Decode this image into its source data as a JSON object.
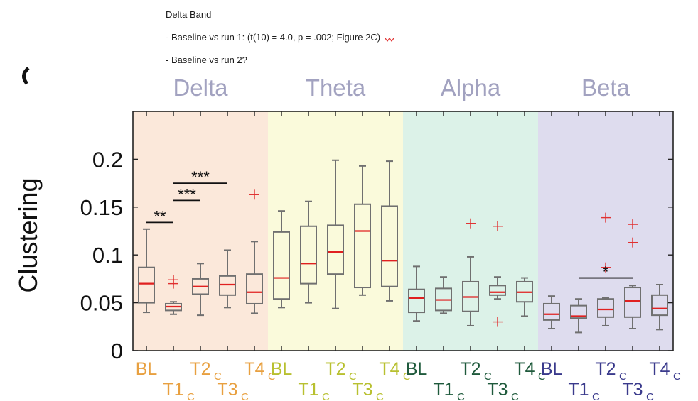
{
  "notes": {
    "line1": "Delta Band",
    "line2": "- Baseline vs run 1: (t(10) = 4.0, p = .002; Figure 2C)",
    "line3": "- Baseline vs run 2?"
  },
  "chart_data": {
    "type": "box",
    "ylabel": "Clustering",
    "ylim": [
      0,
      0.25
    ],
    "yticks": [
      "0",
      "0.05",
      "0.1",
      "0.15",
      "0.2"
    ],
    "colors": {
      "median": "#e02020",
      "box": "#707070",
      "outlier": "#e03030"
    },
    "bands": [
      {
        "name": "Delta",
        "bg": "#fbe8da",
        "label_color": "#a2a2c0",
        "tick_color": "#e8a040",
        "groups": [
          {
            "label": "BL",
            "sub": "",
            "q1": 0.05,
            "median": 0.07,
            "q3": 0.087,
            "whisker_low": 0.04,
            "whisker_high": 0.127,
            "outliers": []
          },
          {
            "label": "T1",
            "sub": "C",
            "q1": 0.042,
            "median": 0.046,
            "q3": 0.049,
            "whisker_low": 0.038,
            "whisker_high": 0.051,
            "outliers": [
              0.07,
              0.074
            ]
          },
          {
            "label": "T2",
            "sub": "C",
            "q1": 0.059,
            "median": 0.067,
            "q3": 0.075,
            "whisker_low": 0.037,
            "whisker_high": 0.091,
            "outliers": []
          },
          {
            "label": "T3",
            "sub": "C",
            "q1": 0.058,
            "median": 0.069,
            "q3": 0.078,
            "whisker_low": 0.045,
            "whisker_high": 0.105,
            "outliers": []
          },
          {
            "label": "T4",
            "sub": "C",
            "q1": 0.049,
            "median": 0.061,
            "q3": 0.08,
            "whisker_low": 0.039,
            "whisker_high": 0.114,
            "outliers": [
              0.163
            ]
          }
        ]
      },
      {
        "name": "Theta",
        "bg": "#fafadb",
        "label_color": "#a2a2c0",
        "tick_color": "#b8c030",
        "groups": [
          {
            "label": "BL",
            "sub": "",
            "q1": 0.054,
            "median": 0.076,
            "q3": 0.124,
            "whisker_low": 0.045,
            "whisker_high": 0.146,
            "outliers": []
          },
          {
            "label": "T1",
            "sub": "C",
            "q1": 0.07,
            "median": 0.091,
            "q3": 0.13,
            "whisker_low": 0.05,
            "whisker_high": 0.156,
            "outliers": []
          },
          {
            "label": "T2",
            "sub": "C",
            "q1": 0.08,
            "median": 0.103,
            "q3": 0.131,
            "whisker_low": 0.044,
            "whisker_high": 0.199,
            "outliers": []
          },
          {
            "label": "T3",
            "sub": "C",
            "q1": 0.066,
            "median": 0.125,
            "q3": 0.153,
            "whisker_low": 0.058,
            "whisker_high": 0.193,
            "outliers": []
          },
          {
            "label": "T4",
            "sub": "C",
            "q1": 0.067,
            "median": 0.094,
            "q3": 0.151,
            "whisker_low": 0.052,
            "whisker_high": 0.198,
            "outliers": []
          }
        ]
      },
      {
        "name": "Alpha",
        "bg": "#dcf2e8",
        "label_color": "#a2a2c0",
        "tick_color": "#1f5a3c",
        "groups": [
          {
            "label": "BL",
            "sub": "",
            "q1": 0.04,
            "median": 0.055,
            "q3": 0.064,
            "whisker_low": 0.031,
            "whisker_high": 0.088,
            "outliers": []
          },
          {
            "label": "T1",
            "sub": "C",
            "q1": 0.042,
            "median": 0.053,
            "q3": 0.065,
            "whisker_low": 0.039,
            "whisker_high": 0.077,
            "outliers": []
          },
          {
            "label": "T2",
            "sub": "C",
            "q1": 0.041,
            "median": 0.056,
            "q3": 0.072,
            "whisker_low": 0.026,
            "whisker_high": 0.098,
            "outliers": [
              0.133
            ]
          },
          {
            "label": "T3",
            "sub": "C",
            "q1": 0.058,
            "median": 0.061,
            "q3": 0.068,
            "whisker_low": 0.054,
            "whisker_high": 0.077,
            "outliers": [
              0.13,
              0.03
            ]
          },
          {
            "label": "T4",
            "sub": "C",
            "q1": 0.051,
            "median": 0.061,
            "q3": 0.072,
            "whisker_low": 0.036,
            "whisker_high": 0.076,
            "outliers": []
          }
        ]
      },
      {
        "name": "Beta",
        "bg": "#dedcee",
        "label_color": "#a2a2c0",
        "tick_color": "#3a3a8c",
        "groups": [
          {
            "label": "BL",
            "sub": "",
            "q1": 0.032,
            "median": 0.038,
            "q3": 0.049,
            "whisker_low": 0.023,
            "whisker_high": 0.057,
            "outliers": []
          },
          {
            "label": "T1",
            "sub": "C",
            "q1": 0.034,
            "median": 0.036,
            "q3": 0.047,
            "whisker_low": 0.019,
            "whisker_high": 0.054,
            "outliers": []
          },
          {
            "label": "T2",
            "sub": "C",
            "q1": 0.035,
            "median": 0.043,
            "q3": 0.054,
            "whisker_low": 0.026,
            "whisker_high": 0.055,
            "outliers": [
              0.139,
              0.087
            ]
          },
          {
            "label": "T3",
            "sub": "C",
            "q1": 0.035,
            "median": 0.052,
            "q3": 0.066,
            "whisker_low": 0.023,
            "whisker_high": 0.068,
            "outliers": [
              0.132,
              0.113
            ]
          },
          {
            "label": "T4",
            "sub": "C",
            "q1": 0.037,
            "median": 0.044,
            "q3": 0.058,
            "whisker_low": 0.022,
            "whisker_high": 0.069,
            "outliers": []
          }
        ]
      }
    ],
    "significance": [
      {
        "label": "**",
        "band": 0,
        "from": 0,
        "to": 1,
        "y": 0.134
      },
      {
        "label": "***",
        "band": 0,
        "from": 1,
        "to": 2,
        "y": 0.157
      },
      {
        "label": "***",
        "band": 0,
        "from": 1,
        "to": 3,
        "y": 0.175
      },
      {
        "label": "*",
        "band": 3,
        "from": 1,
        "to": 3,
        "y": 0.076
      }
    ]
  }
}
